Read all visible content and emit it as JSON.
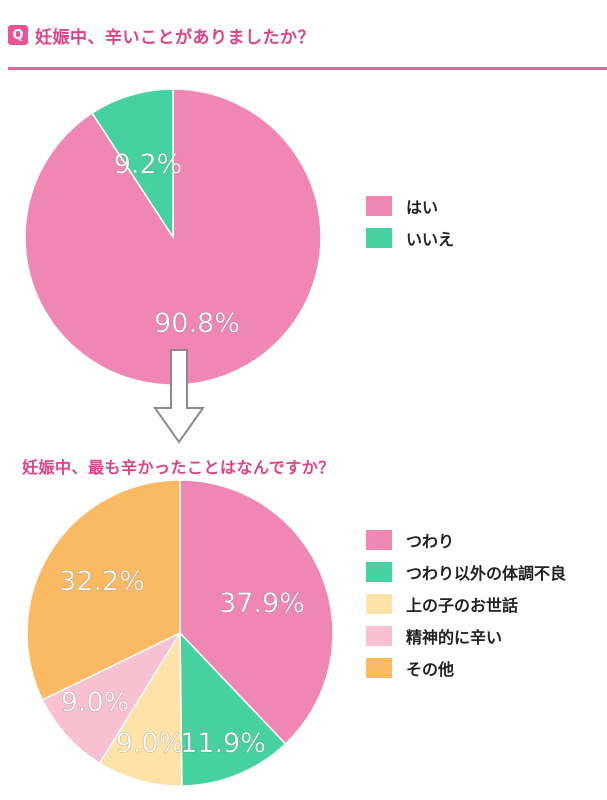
{
  "header": {
    "badge": "Q",
    "title": "妊娠中、辛いことがありましたか？"
  },
  "sub_title": "妊娠中、最も辛かったことはなんですか？",
  "colors": {
    "accent": "#ea5297",
    "pink": "#ef86b4",
    "green": "#45d1a0",
    "beige": "#fde3a7",
    "light_pink": "#f9c0d2",
    "orange": "#fbb962"
  },
  "chart_data": [
    {
      "type": "pie",
      "title": "妊娠中、辛いことがありましたか？",
      "categories": [
        "はい",
        "いいえ"
      ],
      "values": [
        90.8,
        9.2
      ],
      "labels": [
        "90.8%",
        "9.2%"
      ],
      "colors": [
        "#ef86b4",
        "#45d1a0"
      ],
      "legend": "right"
    },
    {
      "type": "pie",
      "title": "妊娠中、最も辛かったことはなんですか？",
      "categories": [
        "つわり",
        "つわり以外の体調不良",
        "上の子のお世話",
        "精神的に辛い",
        "その他"
      ],
      "values": [
        37.9,
        11.9,
        9.0,
        9.0,
        32.2
      ],
      "labels": [
        "37.9%",
        "11.9%",
        "9.0%",
        "9.0%",
        "32.2%"
      ],
      "colors": [
        "#ef86b4",
        "#45d1a0",
        "#fde3a7",
        "#f9c0d2",
        "#fbb962"
      ],
      "legend": "right"
    }
  ]
}
